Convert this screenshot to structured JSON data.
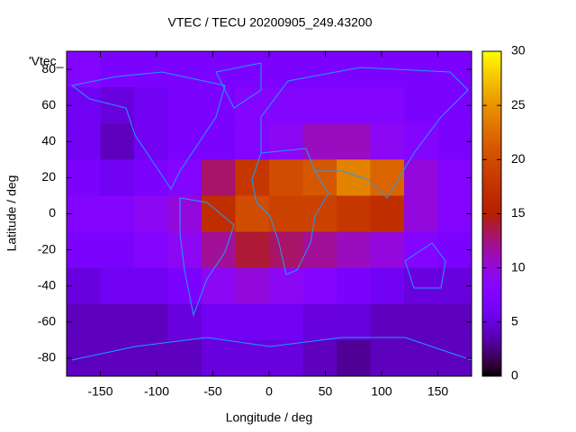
{
  "chart_data": {
    "type": "heatmap",
    "title": "VTEC / TECU 20200905_249.43200",
    "xlabel": "Longitude / deg",
    "ylabel": "Latitude / deg",
    "key_label": "'Vtec_",
    "x": [
      -165,
      -135,
      -105,
      -75,
      -45,
      -15,
      15,
      45,
      75,
      105,
      135,
      165
    ],
    "y": [
      80,
      60,
      40,
      20,
      0,
      -20,
      -40,
      -60,
      -80
    ],
    "z": [
      [
        8,
        7,
        7,
        7,
        7,
        7,
        7,
        7,
        7,
        7,
        7,
        7
      ],
      [
        6,
        5,
        6,
        7,
        7,
        8,
        8,
        8,
        8,
        8,
        7,
        7
      ],
      [
        6,
        4,
        6,
        7,
        7,
        8,
        9,
        11,
        11,
        9,
        8,
        7
      ],
      [
        7,
        6,
        7,
        8,
        13,
        18,
        20,
        21,
        24,
        22,
        10,
        8
      ],
      [
        8,
        8,
        9,
        10,
        17,
        20,
        19,
        19,
        18,
        17,
        10,
        8
      ],
      [
        7,
        7,
        8,
        9,
        12,
        14,
        13,
        12,
        11,
        10,
        8,
        7
      ],
      [
        5,
        6,
        6,
        7,
        9,
        10,
        9,
        8,
        7,
        6,
        5,
        5
      ],
      [
        4,
        4,
        4,
        5,
        6,
        6,
        6,
        5,
        5,
        4,
        4,
        4
      ],
      [
        4,
        4,
        4,
        4,
        5,
        5,
        5,
        4,
        3,
        4,
        4,
        4
      ]
    ],
    "xlim": [
      -180,
      180
    ],
    "ylim": [
      -90,
      90
    ],
    "zlim": [
      0,
      30
    ],
    "xticks": [
      -150,
      -100,
      -50,
      0,
      50,
      100,
      150
    ],
    "yticks": [
      -80,
      -60,
      -40,
      -20,
      0,
      20,
      40,
      60,
      80
    ],
    "zticks": [
      0,
      5,
      10,
      15,
      20,
      25,
      30
    ],
    "palette_formulae": [
      7,
      5,
      15
    ]
  }
}
